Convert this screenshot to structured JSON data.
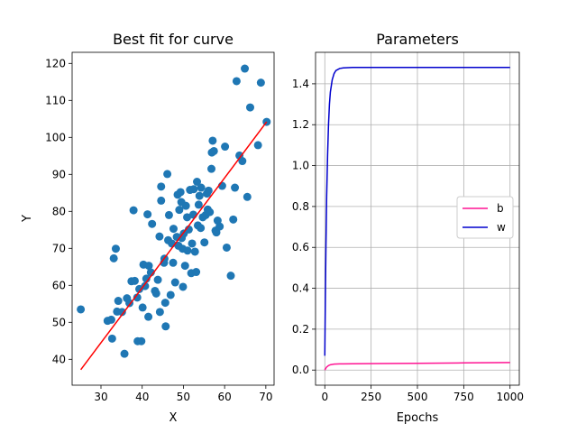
{
  "chart_data": [
    {
      "type": "scatter",
      "title": "Best fit for curve",
      "xlabel": "X",
      "ylabel": "Y",
      "xlim": [
        23,
        72
      ],
      "ylim": [
        33,
        123
      ],
      "xticks": [
        30,
        40,
        50,
        60,
        70
      ],
      "yticks": [
        40,
        50,
        60,
        70,
        80,
        90,
        100,
        110,
        120
      ],
      "grid": false,
      "colors": {
        "points": "#1f77b4",
        "fit_line": "#ff0000"
      },
      "series": [
        {
          "kind": "scatter",
          "points": [
            [
              25.1,
              53.5
            ],
            [
              31.6,
              50.4
            ],
            [
              32.5,
              50.7
            ],
            [
              32.7,
              45.6
            ],
            [
              33.1,
              67.3
            ],
            [
              33.6,
              69.9
            ],
            [
              33.9,
              52.9
            ],
            [
              34.2,
              55.8
            ],
            [
              35.1,
              52.8
            ],
            [
              35.7,
              41.5
            ],
            [
              36.3,
              56.5
            ],
            [
              36.9,
              55.2
            ],
            [
              37.4,
              61.1
            ],
            [
              37.9,
              80.3
            ],
            [
              38.2,
              61.2
            ],
            [
              38.8,
              56.7
            ],
            [
              39.3,
              59.0
            ],
            [
              38.9,
              44.9
            ],
            [
              39.8,
              44.9
            ],
            [
              40.1,
              54.0
            ],
            [
              40.3,
              65.6
            ],
            [
              40.7,
              59.8
            ],
            [
              41.0,
              61.8
            ],
            [
              41.3,
              79.2
            ],
            [
              41.5,
              51.5
            ],
            [
              41.6,
              65.3
            ],
            [
              42.1,
              63.5
            ],
            [
              42.4,
              76.6
            ],
            [
              43.1,
              58.5
            ],
            [
              43.4,
              57.8
            ],
            [
              43.8,
              61.5
            ],
            [
              44.2,
              73.2
            ],
            [
              44.3,
              52.8
            ],
            [
              44.6,
              86.7
            ],
            [
              44.6,
              82.9
            ],
            [
              45.3,
              66.1
            ],
            [
              45.4,
              67.2
            ],
            [
              45.6,
              55.3
            ],
            [
              45.7,
              48.9
            ],
            [
              46.1,
              90.1
            ],
            [
              46.3,
              72.2
            ],
            [
              46.5,
              79.0
            ],
            [
              46.9,
              57.4
            ],
            [
              47.2,
              71.3
            ],
            [
              47.5,
              66.1
            ],
            [
              47.6,
              75.3
            ],
            [
              48.0,
              60.8
            ],
            [
              48.4,
              73.1
            ],
            [
              48.6,
              84.5
            ],
            [
              48.8,
              70.7
            ],
            [
              49.0,
              80.4
            ],
            [
              49.3,
              85.2
            ],
            [
              49.5,
              82.5
            ],
            [
              49.6,
              72.8
            ],
            [
              49.8,
              69.9
            ],
            [
              49.9,
              59.6
            ],
            [
              50.1,
              74.0
            ],
            [
              50.4,
              65.3
            ],
            [
              50.6,
              81.5
            ],
            [
              50.9,
              78.4
            ],
            [
              51.0,
              69.4
            ],
            [
              51.3,
              75.1
            ],
            [
              51.6,
              85.8
            ],
            [
              51.9,
              63.3
            ],
            [
              52.1,
              71.3
            ],
            [
              52.4,
              79.1
            ],
            [
              52.5,
              86.0
            ],
            [
              52.8,
              69.1
            ],
            [
              53.1,
              63.6
            ],
            [
              53.3,
              88.0
            ],
            [
              53.5,
              76.2
            ],
            [
              53.7,
              81.8
            ],
            [
              53.9,
              84.2
            ],
            [
              54.2,
              75.5
            ],
            [
              54.3,
              86.4
            ],
            [
              54.7,
              78.4
            ],
            [
              55.1,
              71.6
            ],
            [
              55.4,
              79.0
            ],
            [
              55.7,
              84.8
            ],
            [
              55.9,
              80.5
            ],
            [
              56.1,
              85.6
            ],
            [
              56.4,
              79.8
            ],
            [
              56.8,
              91.5
            ],
            [
              56.9,
              95.9
            ],
            [
              57.1,
              99.1
            ],
            [
              57.4,
              96.3
            ],
            [
              57.8,
              74.8
            ],
            [
              58.0,
              74.3
            ],
            [
              58.3,
              77.5
            ],
            [
              58.8,
              75.9
            ],
            [
              59.4,
              86.9
            ],
            [
              60.1,
              97.5
            ],
            [
              60.5,
              70.2
            ],
            [
              61.5,
              62.6
            ],
            [
              62.1,
              77.8
            ],
            [
              62.5,
              86.4
            ],
            [
              62.9,
              115.2
            ],
            [
              63.6,
              95.1
            ],
            [
              64.3,
              93.6
            ],
            [
              64.9,
              118.6
            ],
            [
              65.5,
              83.9
            ],
            [
              66.2,
              108.1
            ],
            [
              68.1,
              97.9
            ],
            [
              68.8,
              114.8
            ],
            [
              70.2,
              104.2
            ]
          ]
        },
        {
          "kind": "line",
          "points": [
            [
              25.1,
              37.2
            ],
            [
              70.2,
              104.2
            ]
          ]
        }
      ]
    },
    {
      "type": "line",
      "title": "Parameters",
      "xlabel": "Epochs",
      "ylabel": "",
      "xlim": [
        -50,
        1050
      ],
      "ylim": [
        -0.074,
        1.554
      ],
      "xticks": [
        0,
        250,
        500,
        750,
        1000
      ],
      "yticks": [
        0.0,
        0.2,
        0.4,
        0.6,
        0.8,
        1.0,
        1.2,
        1.4
      ],
      "ytick_labels": [
        "0.0",
        "0.2",
        "0.4",
        "0.6",
        "0.8",
        "1.0",
        "1.2",
        "1.4"
      ],
      "grid": true,
      "legend": "center-right",
      "series": [
        {
          "name": "b",
          "color": "#ff1493",
          "points": [
            [
              0,
              0.0
            ],
            [
              5,
              0.008
            ],
            [
              10,
              0.015
            ],
            [
              20,
              0.022
            ],
            [
              30,
              0.026
            ],
            [
              50,
              0.029
            ],
            [
              80,
              0.03
            ],
            [
              150,
              0.031
            ],
            [
              300,
              0.032
            ],
            [
              500,
              0.033
            ],
            [
              750,
              0.035
            ],
            [
              1000,
              0.037
            ]
          ]
        },
        {
          "name": "w",
          "color": "#0000cd",
          "points": [
            [
              0,
              0.07
            ],
            [
              3,
              0.35
            ],
            [
              6,
              0.6
            ],
            [
              10,
              0.85
            ],
            [
              15,
              1.05
            ],
            [
              20,
              1.2
            ],
            [
              25,
              1.3
            ],
            [
              30,
              1.36
            ],
            [
              40,
              1.42
            ],
            [
              50,
              1.45
            ],
            [
              60,
              1.465
            ],
            [
              80,
              1.475
            ],
            [
              100,
              1.478
            ],
            [
              150,
              1.48
            ],
            [
              300,
              1.48
            ],
            [
              1000,
              1.48
            ]
          ]
        }
      ]
    }
  ]
}
